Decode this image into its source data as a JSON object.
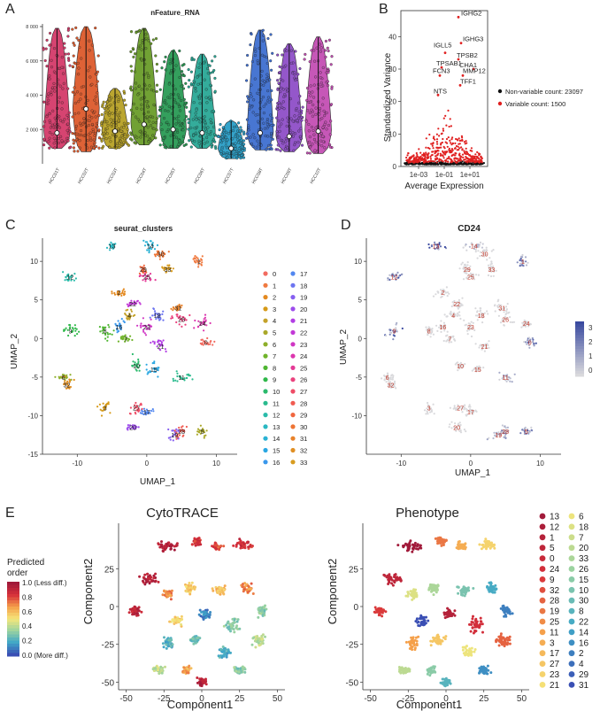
{
  "panel_letters": [
    "A",
    "B",
    "C",
    "D",
    "E"
  ],
  "colors": {
    "violins": [
      "#d43b6a",
      "#dd5a2c",
      "#b8a225",
      "#6a9c2a",
      "#2a9a55",
      "#2aa896",
      "#2a9fc8",
      "#3f6fd0",
      "#8f4fc8",
      "#c44fb4"
    ],
    "clusters": [
      "#f26b60",
      "#f07a40",
      "#e48a20",
      "#d69a18",
      "#c4a22a",
      "#aaa82a",
      "#8eaf2a",
      "#70b42a",
      "#4fb632",
      "#2fb84a",
      "#2aba6c",
      "#2abb8e",
      "#2abbaa",
      "#2ab8c2",
      "#2ab2d4",
      "#2aa7e2",
      "#3a98ec",
      "#5287f0",
      "#6c74f0",
      "#865ff0",
      "#9d4cec",
      "#b23ee4",
      "#c238d6",
      "#d036c4",
      "#dc36ae",
      "#e43a96",
      "#ea427e",
      "#ee4c66",
      "#f05a50",
      "#f0663e",
      "#ee7434",
      "#e8822a",
      "#e08f24",
      "#d89c20"
    ],
    "cd24_low": "#d9d9dc",
    "cd24_high": "#3a4aa0",
    "variable": "#e02020",
    "nonvariable": "#111111"
  },
  "chart_data": [
    {
      "panel": "A",
      "type": "violin",
      "title": "nFeature_RNA",
      "categories": [
        "HCC01T",
        "HCC02T",
        "HCC03T",
        "HCC04T",
        "HCC05T",
        "HCC06T",
        "HCC07T",
        "HCC08T",
        "HCC09T",
        "HCC10T"
      ],
      "medians": [
        1800,
        3200,
        1900,
        2300,
        2000,
        1800,
        900,
        1800,
        1600,
        1900
      ],
      "upper": [
        7900,
        8000,
        4400,
        7900,
        6600,
        6400,
        2500,
        7800,
        7000,
        7400
      ],
      "lower": [
        900,
        700,
        900,
        1100,
        900,
        900,
        300,
        800,
        700,
        600
      ],
      "ylim": [
        0,
        8000
      ],
      "yticks": [
        "8 000",
        "6 000",
        "4 000",
        "2 000"
      ]
    },
    {
      "panel": "B",
      "type": "scatter",
      "xlabel": "Average Expression",
      "ylabel": "Standardized Variance",
      "xticks": [
        "1e-03",
        "1e-01",
        "1e+01"
      ],
      "yticks": [
        "40",
        "30",
        "20",
        "10",
        "0"
      ],
      "ylim": [
        0,
        48
      ],
      "labeled_genes": [
        "IGHG2",
        "IGHG3",
        "IGLL5",
        "TPSB2",
        "TPSAB1",
        "CHA1",
        "FCN3",
        "MMP12",
        "TFF1",
        "NTS"
      ],
      "legend": [
        "Non-variable count: 23097",
        "Variable count: 1500"
      ]
    },
    {
      "panel": "C",
      "type": "scatter",
      "title": "seurat_clusters",
      "xlabel": "UMAP_1",
      "ylabel": "UMAP_2",
      "xticks": [
        "-10",
        "0",
        "10"
      ],
      "yticks": [
        "10",
        "5",
        "0",
        "-5",
        "-10",
        "-15"
      ],
      "xlim": [
        -15,
        13
      ],
      "ylim": [
        -15,
        13
      ],
      "legend_col1": [
        "0",
        "1",
        "2",
        "3",
        "4",
        "5",
        "6",
        "7",
        "8",
        "9",
        "10",
        "11",
        "12",
        "13",
        "14",
        "15",
        "16"
      ],
      "legend_col2": [
        "17",
        "18",
        "19",
        "20",
        "21",
        "22",
        "23",
        "24",
        "25",
        "26",
        "27",
        "28",
        "29",
        "30",
        "31",
        "32",
        "33"
      ],
      "cluster_centers": [
        {
          "id": "0",
          "x": 8.5,
          "y": -0.5
        },
        {
          "id": "1",
          "x": 7.5,
          "y": 10
        },
        {
          "id": "2",
          "x": -4,
          "y": 6
        },
        {
          "id": "3",
          "x": -6,
          "y": -9
        },
        {
          "id": "4",
          "x": -2.5,
          "y": 3
        },
        {
          "id": "5",
          "x": 8,
          "y": -12
        },
        {
          "id": "6",
          "x": -12,
          "y": -5
        },
        {
          "id": "7",
          "x": -3,
          "y": 0
        },
        {
          "id": "8",
          "x": -6,
          "y": 1
        },
        {
          "id": "9",
          "x": -11,
          "y": 1
        },
        {
          "id": "10",
          "x": -1.5,
          "y": -3.5
        },
        {
          "id": "11",
          "x": 5,
          "y": -5
        },
        {
          "id": "12",
          "x": -11,
          "y": 8
        },
        {
          "id": "13",
          "x": -5,
          "y": 12
        },
        {
          "id": "14",
          "x": 0.5,
          "y": 12
        },
        {
          "id": "15",
          "x": 1,
          "y": -4
        },
        {
          "id": "16",
          "x": -4,
          "y": 1.5
        },
        {
          "id": "17",
          "x": 0,
          "y": -9.5
        },
        {
          "id": "18",
          "x": 1.5,
          "y": 3
        },
        {
          "id": "19",
          "x": 4,
          "y": -12.5
        },
        {
          "id": "20",
          "x": -2,
          "y": -11.5
        },
        {
          "id": "21",
          "x": 2,
          "y": -1
        },
        {
          "id": "22",
          "x": -2,
          "y": 4.5
        },
        {
          "id": "23",
          "x": 0,
          "y": 1.5
        },
        {
          "id": "24",
          "x": 8,
          "y": 2
        },
        {
          "id": "25",
          "x": 0,
          "y": 8
        },
        {
          "id": "26",
          "x": 5,
          "y": 2.5
        },
        {
          "id": "27",
          "x": -1.5,
          "y": -9
        },
        {
          "id": "28",
          "x": 5,
          "y": -12
        },
        {
          "id": "29",
          "x": -0.5,
          "y": 9
        },
        {
          "id": "30",
          "x": 2,
          "y": 11
        },
        {
          "id": "31",
          "x": 4.5,
          "y": 4
        },
        {
          "id": "32",
          "x": -11.5,
          "y": -6
        },
        {
          "id": "33",
          "x": 3,
          "y": 9
        }
      ]
    },
    {
      "panel": "D",
      "type": "scatter",
      "title": "CD24",
      "xlabel": "UMAP_1",
      "ylabel": "UMAP_2",
      "xticks": [
        "-10",
        "0",
        "10"
      ],
      "yticks": [
        "10",
        "5",
        "0",
        "-5",
        "-10"
      ],
      "colorbar_ticks": [
        "3",
        "2",
        "1",
        "0"
      ],
      "cluster_labels": [
        "13",
        "14",
        "30",
        "1",
        "29",
        "33",
        "12",
        "25",
        "22",
        "2",
        "31",
        "4",
        "18",
        "26",
        "24",
        "9",
        "16",
        "8",
        "23",
        "7",
        "21",
        "0",
        "10",
        "15",
        "11",
        "6",
        "32",
        "3",
        "27",
        "17",
        "20",
        "19",
        "28",
        "5"
      ]
    },
    {
      "panel": "E1",
      "type": "scatter",
      "title": "CytoTRACE",
      "xlabel": "Component1",
      "ylabel": "Component2",
      "xticks": [
        "-50",
        "-25",
        "0",
        "25",
        "50"
      ],
      "yticks": [
        "25",
        "0",
        "-25",
        "-50"
      ],
      "colorbar_title": [
        "Predicted",
        "order"
      ],
      "colorbar_ticks": [
        "1.0 (Less diff.)",
        "0.8",
        "0.6",
        "0.4",
        "0.2",
        "0.0 (More diff.)"
      ]
    },
    {
      "panel": "E2",
      "type": "scatter",
      "title": "Phenotype",
      "xlabel": "Component1",
      "ylabel": "Component2",
      "xticks": [
        "-50",
        "-25",
        "0",
        "25",
        "50"
      ],
      "yticks": [
        "25",
        "0",
        "-25",
        "-50"
      ],
      "legend_col1": [
        "13",
        "12",
        "1",
        "5",
        "0",
        "24",
        "9",
        "32",
        "28",
        "19",
        "25",
        "11",
        "3",
        "17",
        "27",
        "23",
        "21"
      ],
      "legend_col2": [
        "6",
        "18",
        "7",
        "20",
        "33",
        "26",
        "15",
        "10",
        "30",
        "8",
        "22",
        "14",
        "16",
        "2",
        "4",
        "29",
        "31"
      ]
    }
  ]
}
